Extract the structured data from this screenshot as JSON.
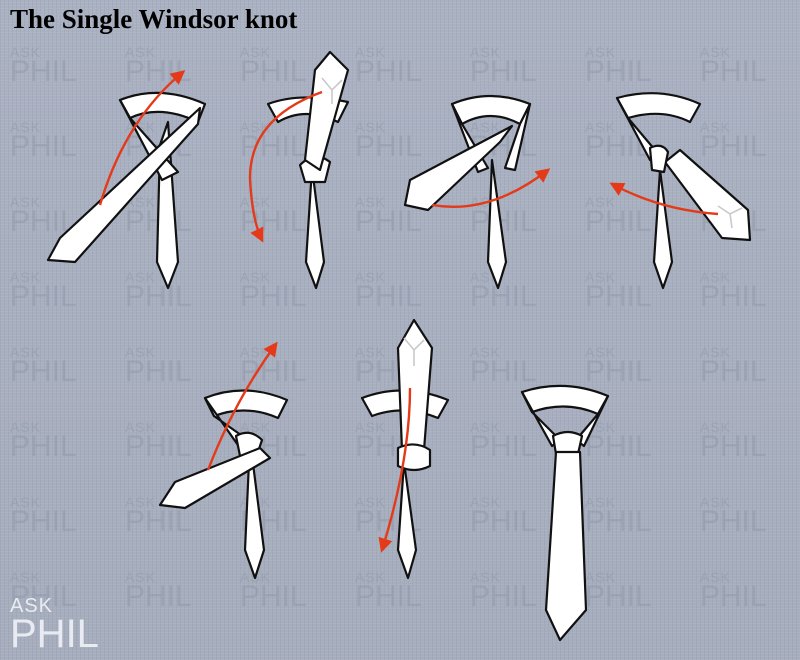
{
  "title": "The Single Windsor knot",
  "watermark": {
    "ask": "ASK",
    "phil": "PHIL"
  },
  "logo": {
    "ask": "ASK",
    "phil": "PHIL"
  },
  "colors": {
    "background": "#a9b0c0",
    "arrow": "#e43a1a",
    "tie": "#ffffff",
    "outline": "#111111"
  },
  "steps": [
    {
      "name": "step-1"
    },
    {
      "name": "step-2"
    },
    {
      "name": "step-3"
    },
    {
      "name": "step-4"
    },
    {
      "name": "step-5"
    },
    {
      "name": "step-6"
    },
    {
      "name": "step-7"
    }
  ]
}
